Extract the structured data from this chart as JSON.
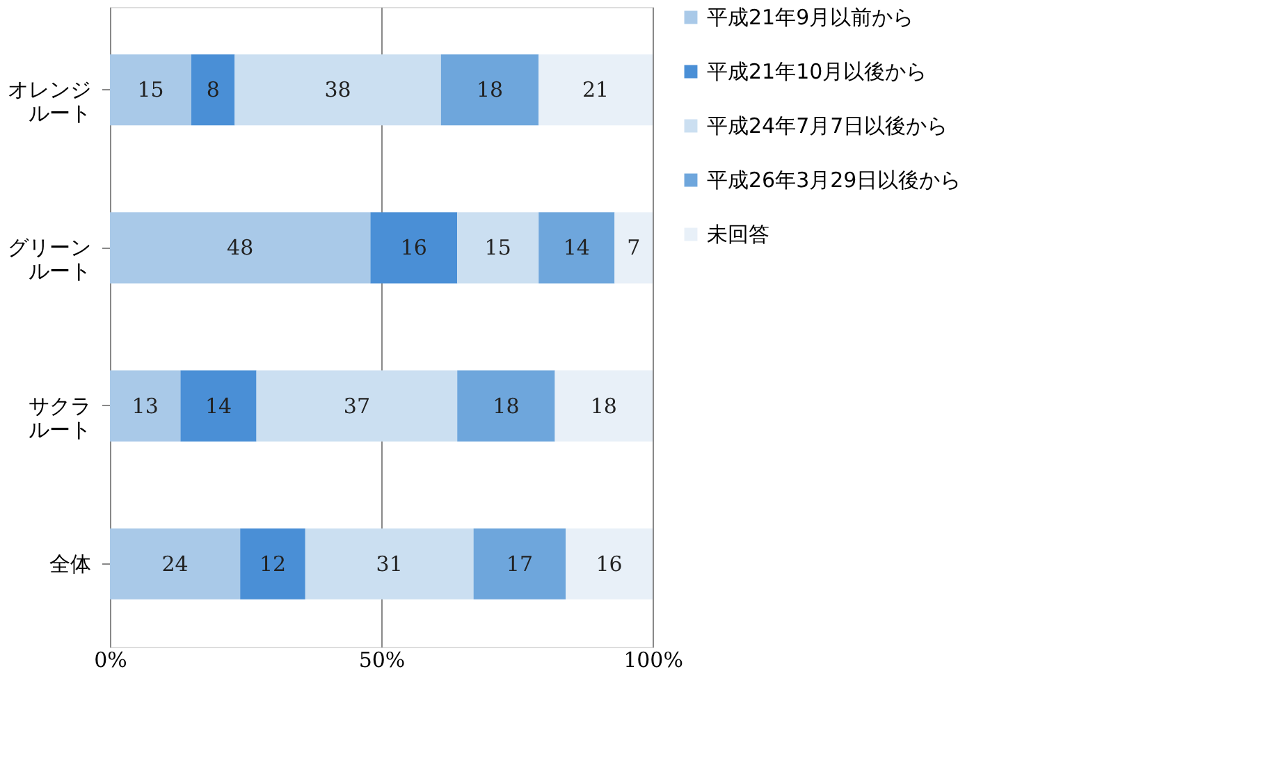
{
  "chart_data": {
    "type": "bar",
    "orientation": "horizontal",
    "stacked": true,
    "categories": [
      "オレンジルート",
      "グリーンルート",
      "サクラルート",
      "全体"
    ],
    "series": [
      {
        "name": "平成21年9月以前から",
        "color": "#a9c9e8",
        "values": [
          15,
          48,
          13,
          24
        ]
      },
      {
        "name": "平成21年10月以後から",
        "color": "#4a8fd6",
        "values": [
          8,
          16,
          14,
          12
        ]
      },
      {
        "name": "平成24年7月7日以後から",
        "color": "#cbdff1",
        "values": [
          38,
          15,
          37,
          31
        ]
      },
      {
        "name": "平成26年3月29日以後から",
        "color": "#6ea6dc",
        "values": [
          18,
          14,
          18,
          17
        ]
      },
      {
        "name": "未回答",
        "color": "#e8f0f8",
        "values": [
          21,
          7,
          18,
          16
        ]
      }
    ],
    "xlim": [
      0,
      100
    ],
    "xticks": [
      {
        "value": 0,
        "label": "0%"
      },
      {
        "value": 50,
        "label": "50%"
      },
      {
        "value": 100,
        "label": "100%"
      }
    ],
    "data_labels": true,
    "grid": "x",
    "legend": "right"
  }
}
